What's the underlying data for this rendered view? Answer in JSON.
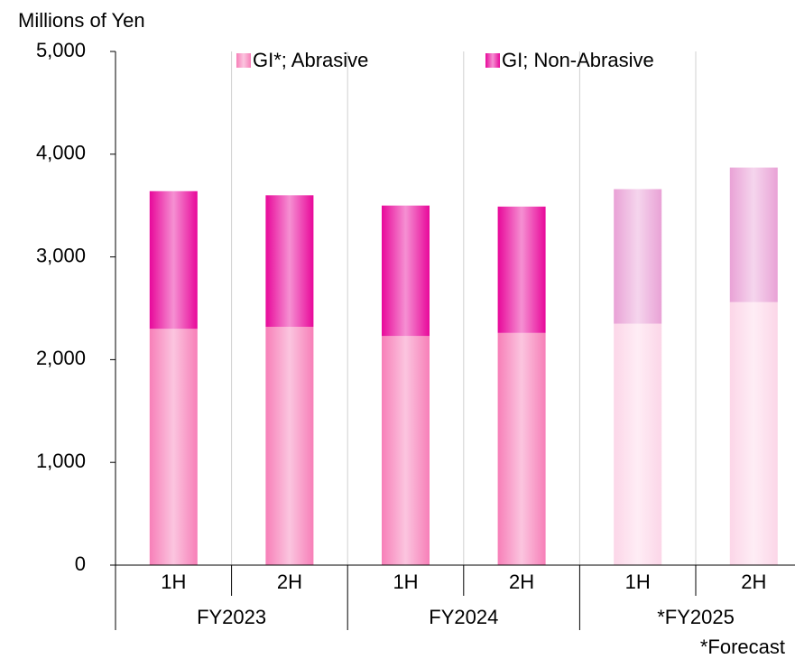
{
  "chart_data": {
    "type": "stacked_bar",
    "y_axis_title": "Millions of Yen",
    "categories": [
      "1H",
      "2H",
      "1H",
      "2H",
      "1H",
      "2H"
    ],
    "groups": [
      "FY2023",
      "FY2024",
      "*FY2025"
    ],
    "series": [
      {
        "name": "GI*; Abrasive",
        "color": "#f77fb8",
        "colors": [
          "#f77fb8",
          "#f77fb8",
          "#f77fb8",
          "#f77fb8",
          "#fcd6e8",
          "#fcd6e8"
        ],
        "values": [
          2300,
          2320,
          2230,
          2260,
          2350,
          2560
        ]
      },
      {
        "name": "GI; Non-Abrasive",
        "color": "#e8089a",
        "colors": [
          "#e8089a",
          "#e8089a",
          "#e8089a",
          "#e8089a",
          "#e9a2d6",
          "#e9a2d6"
        ],
        "values": [
          1340,
          1280,
          1270,
          1230,
          1310,
          1310
        ]
      }
    ],
    "ylim": [
      0,
      5000
    ],
    "yticks": [
      0,
      {
        "value": 1000,
        "label": "1,000"
      },
      {
        "value": 2000,
        "label": "2,000"
      },
      {
        "value": 3000,
        "label": "3,000"
      },
      {
        "value": 4000,
        "label": "4,000"
      },
      {
        "value": 5000,
        "label": "5,000"
      }
    ],
    "grid": true,
    "footnote": "*Forecast"
  }
}
